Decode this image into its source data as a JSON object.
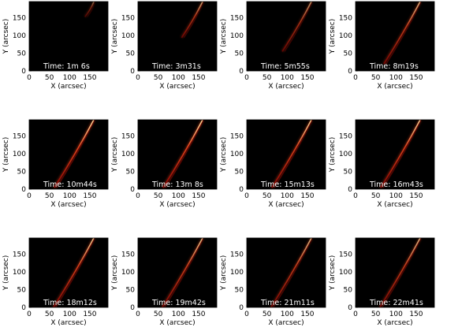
{
  "figure": {
    "panels": [
      {
        "time": "Time:   1m  6s",
        "intensity": 0.45,
        "extent": [
          0.78,
          1.0
        ]
      },
      {
        "time": "Time:   3m31s",
        "intensity": 0.7,
        "extent": [
          0.48,
          1.0
        ]
      },
      {
        "time": "Time:   5m55s",
        "intensity": 0.65,
        "extent": [
          0.28,
          1.0
        ]
      },
      {
        "time": "Time:   8m19s",
        "intensity": 0.8,
        "extent": [
          0.1,
          1.0
        ]
      },
      {
        "time": "Time: 10m44s",
        "intensity": 1.0,
        "extent": [
          0.02,
          1.0
        ]
      },
      {
        "time": "Time: 13m  8s",
        "intensity": 1.0,
        "extent": [
          0.02,
          1.0
        ]
      },
      {
        "time": "Time: 15m13s",
        "intensity": 0.95,
        "extent": [
          0.02,
          1.0
        ]
      },
      {
        "time": "Time: 16m43s",
        "intensity": 0.95,
        "extent": [
          0.02,
          1.0
        ]
      },
      {
        "time": "Time: 18m12s",
        "intensity": 0.9,
        "extent": [
          0.0,
          1.0
        ]
      },
      {
        "time": "Time: 19m42s",
        "intensity": 0.85,
        "extent": [
          0.0,
          1.0
        ]
      },
      {
        "time": "Time: 21m11s",
        "intensity": 0.8,
        "extent": [
          0.0,
          1.0
        ]
      },
      {
        "time": "Time: 22m41s",
        "intensity": 0.8,
        "extent": [
          0.0,
          1.0
        ]
      }
    ]
  },
  "axes": {
    "xlabel": "X (arcsec)",
    "ylabel": "Y (arcsec)",
    "xticks": [
      0,
      50,
      100,
      150
    ],
    "yticks": [
      0,
      50,
      100,
      150
    ],
    "xlim": [
      0,
      195
    ],
    "ylim": [
      0,
      195
    ]
  },
  "colors": {
    "background": "#000000",
    "loop_dim": "#8b0000",
    "loop_mid": "#e0401a",
    "loop_bright": "#ffe6a0"
  }
}
